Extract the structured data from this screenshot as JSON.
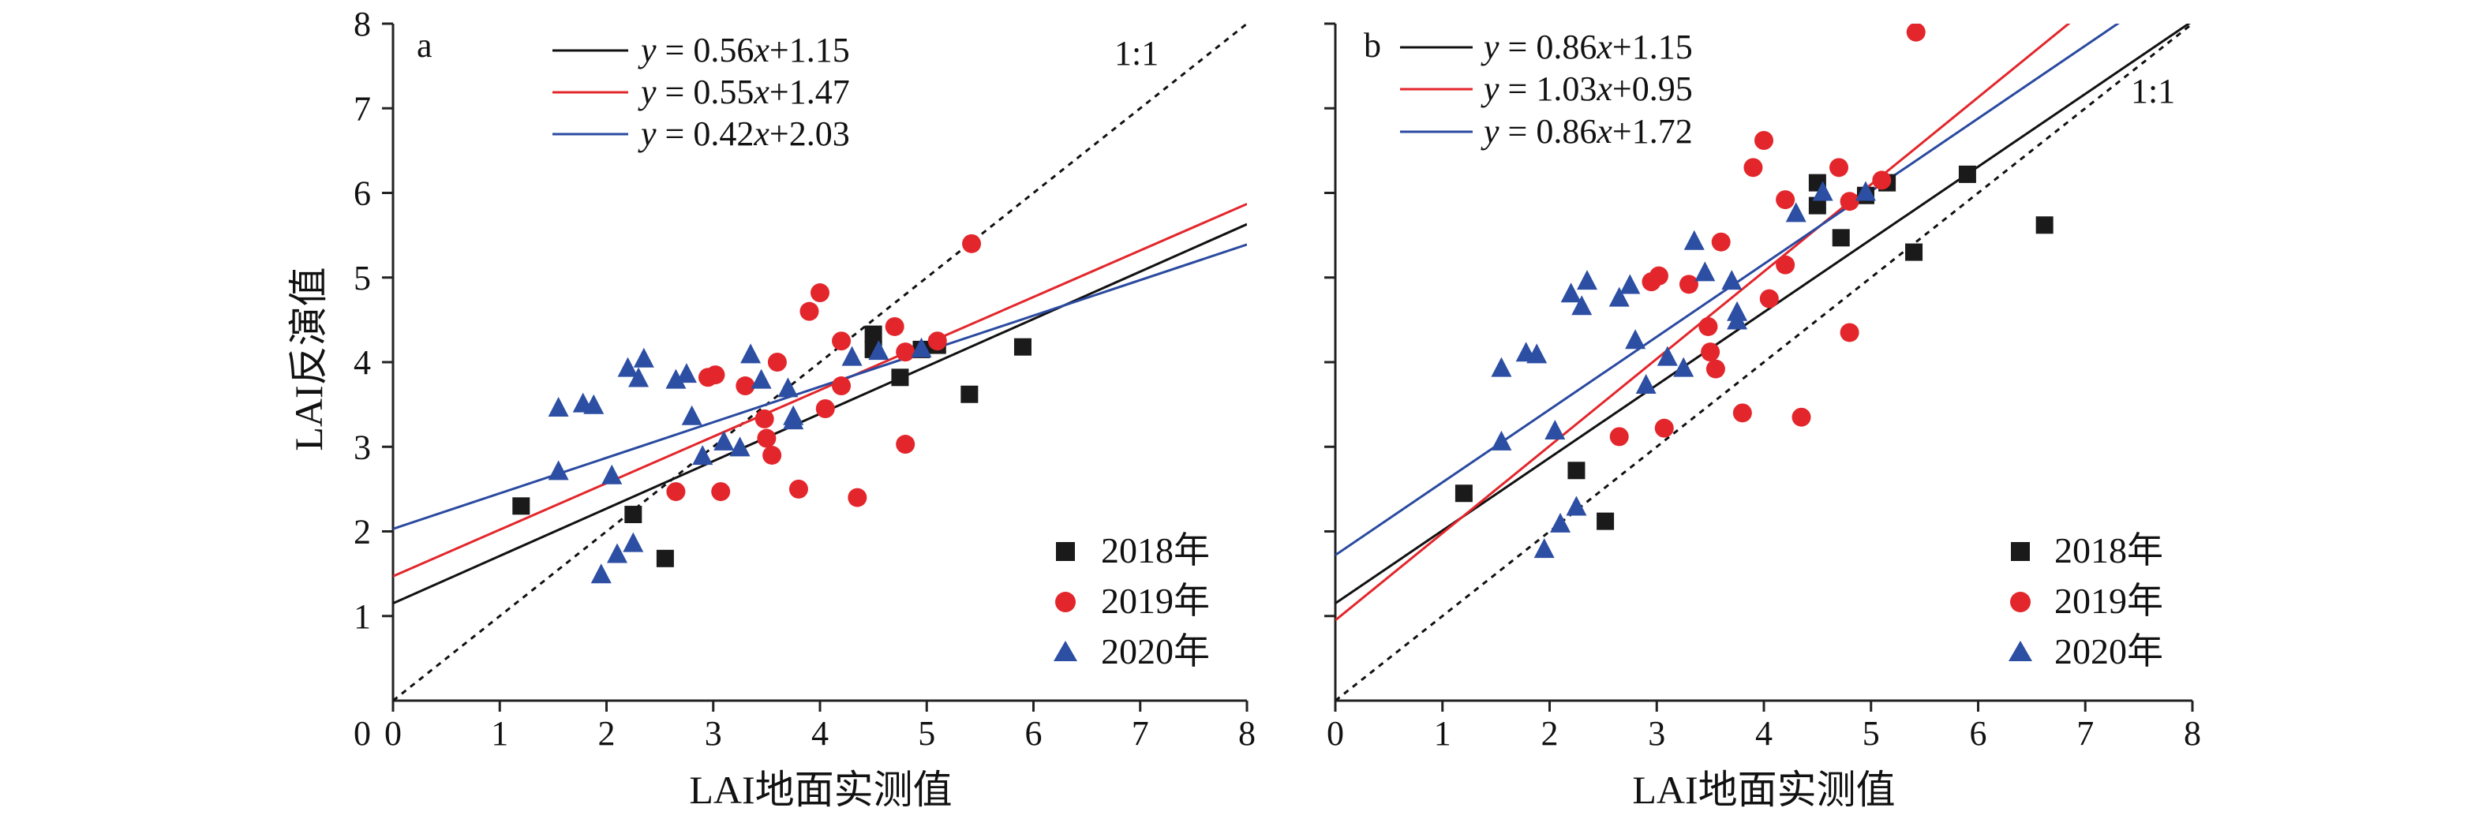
{
  "figure": {
    "y_axis_label": "LAI反演值",
    "years": [
      "2018年",
      "2019年",
      "2020年"
    ]
  },
  "colors": {
    "y2018": "#1a1a1a",
    "y2019": "#e3262b",
    "y2020": "#2c4ea3",
    "fit2018": "#111111",
    "fit2019": "#e3262b",
    "fit2020": "#2a4aa0",
    "one_to_one": "#111111"
  },
  "chart_data": [
    {
      "type": "scatter",
      "panel_label": "a",
      "xlabel": "LAI地面实测值",
      "ylabel": "LAI反演值",
      "xlim": [
        0,
        8
      ],
      "ylim": [
        0,
        8
      ],
      "xticks": [
        "0",
        "1",
        "2",
        "3",
        "4",
        "5",
        "6",
        "7",
        "8"
      ],
      "yticks": [
        "1",
        "2",
        "3",
        "4",
        "5",
        "6",
        "7",
        "8"
      ],
      "one_to_one_label": "1:1",
      "legend_position": "bottom-right",
      "series": [
        {
          "name": "2018年",
          "marker": "square",
          "color": "#1a1a1a",
          "equation": {
            "prefix": "y",
            "mid": " = 0.56",
            "var": "x",
            "suffix": "+1.15"
          },
          "fit": {
            "slope": 0.56,
            "intercept": 1.15
          },
          "points": [
            [
              1.2,
              2.3
            ],
            [
              2.25,
              2.2
            ],
            [
              2.55,
              1.68
            ],
            [
              4.5,
              4.33
            ],
            [
              4.5,
              4.15
            ],
            [
              4.75,
              3.82
            ],
            [
              4.95,
              4.15
            ],
            [
              5.1,
              4.2
            ],
            [
              5.4,
              3.62
            ],
            [
              5.9,
              4.18
            ]
          ]
        },
        {
          "name": "2019年",
          "marker": "circle",
          "color": "#e3262b",
          "equation": {
            "prefix": "y",
            "mid": " = 0.55",
            "var": "x",
            "suffix": "+1.47"
          },
          "fit": {
            "slope": 0.55,
            "intercept": 1.47
          },
          "points": [
            [
              2.65,
              2.47
            ],
            [
              2.95,
              3.82
            ],
            [
              3.02,
              3.85
            ],
            [
              3.07,
              2.47
            ],
            [
              3.3,
              3.72
            ],
            [
              3.48,
              3.33
            ],
            [
              3.5,
              3.1
            ],
            [
              3.55,
              2.9
            ],
            [
              3.6,
              4.0
            ],
            [
              3.8,
              2.5
            ],
            [
              3.9,
              4.6
            ],
            [
              4.0,
              4.82
            ],
            [
              4.05,
              3.45
            ],
            [
              4.2,
              4.25
            ],
            [
              4.2,
              3.72
            ],
            [
              4.35,
              2.4
            ],
            [
              4.7,
              4.42
            ],
            [
              4.8,
              4.12
            ],
            [
              4.8,
              3.03
            ],
            [
              5.1,
              4.25
            ],
            [
              5.42,
              5.4
            ]
          ]
        },
        {
          "name": "2020年",
          "marker": "triangle",
          "color": "#2c4ea3",
          "equation": {
            "prefix": "y",
            "mid": " = 0.42",
            "var": "x",
            "suffix": "+2.03"
          },
          "fit": {
            "slope": 0.42,
            "intercept": 2.03
          },
          "points": [
            [
              1.55,
              3.45
            ],
            [
              1.55,
              2.7
            ],
            [
              1.78,
              3.5
            ],
            [
              1.88,
              3.48
            ],
            [
              1.95,
              1.48
            ],
            [
              2.05,
              2.65
            ],
            [
              2.1,
              1.72
            ],
            [
              2.2,
              3.92
            ],
            [
              2.25,
              1.85
            ],
            [
              2.3,
              3.8
            ],
            [
              2.35,
              4.03
            ],
            [
              2.65,
              3.78
            ],
            [
              2.75,
              3.85
            ],
            [
              2.8,
              3.35
            ],
            [
              2.9,
              2.88
            ],
            [
              3.1,
              3.05
            ],
            [
              3.25,
              2.98
            ],
            [
              3.35,
              4.08
            ],
            [
              3.45,
              3.78
            ],
            [
              3.7,
              3.68
            ],
            [
              3.75,
              3.3
            ],
            [
              3.75,
              3.35
            ],
            [
              4.3,
              4.05
            ],
            [
              4.55,
              4.12
            ],
            [
              4.95,
              4.15
            ]
          ]
        }
      ]
    },
    {
      "type": "scatter",
      "panel_label": "b",
      "xlabel": "LAI地面实测值",
      "ylabel": "",
      "xlim": [
        0,
        8
      ],
      "ylim": [
        0,
        8
      ],
      "xticks": [
        "0",
        "1",
        "2",
        "3",
        "4",
        "5",
        "6",
        "7",
        "8"
      ],
      "yticks": [],
      "one_to_one_label": "1:1",
      "legend_position": "bottom-right",
      "series": [
        {
          "name": "2018年",
          "marker": "square",
          "color": "#1a1a1a",
          "equation": {
            "prefix": "y",
            "mid": " = 0.86",
            "var": "x",
            "suffix": "+1.15"
          },
          "fit": {
            "slope": 0.86,
            "intercept": 1.15
          },
          "points": [
            [
              1.2,
              2.45
            ],
            [
              2.25,
              2.72
            ],
            [
              2.52,
              2.12
            ],
            [
              4.5,
              6.12
            ],
            [
              4.5,
              5.85
            ],
            [
              4.72,
              5.47
            ],
            [
              4.95,
              5.97
            ],
            [
              5.15,
              6.12
            ],
            [
              5.4,
              5.3
            ],
            [
              5.9,
              6.22
            ],
            [
              6.62,
              5.62
            ]
          ]
        },
        {
          "name": "2019年",
          "marker": "circle",
          "color": "#e3262b",
          "equation": {
            "prefix": "y",
            "mid": " = 1.03",
            "var": "x",
            "suffix": "+0.95"
          },
          "fit": {
            "slope": 1.03,
            "intercept": 0.95
          },
          "points": [
            [
              2.65,
              3.12
            ],
            [
              2.95,
              4.95
            ],
            [
              3.02,
              5.02
            ],
            [
              3.07,
              3.22
            ],
            [
              3.3,
              4.92
            ],
            [
              3.48,
              4.42
            ],
            [
              3.5,
              4.12
            ],
            [
              3.55,
              3.92
            ],
            [
              3.6,
              5.42
            ],
            [
              3.8,
              3.4
            ],
            [
              3.9,
              6.3
            ],
            [
              4.0,
              6.62
            ],
            [
              4.05,
              4.75
            ],
            [
              4.2,
              5.92
            ],
            [
              4.2,
              5.15
            ],
            [
              4.35,
              3.35
            ],
            [
              4.7,
              6.3
            ],
            [
              4.8,
              5.9
            ],
            [
              4.8,
              4.35
            ],
            [
              5.1,
              6.15
            ],
            [
              5.42,
              7.9
            ]
          ]
        },
        {
          "name": "2020年",
          "marker": "triangle",
          "color": "#2c4ea3",
          "equation": {
            "prefix": "y",
            "mid": " = 0.86",
            "var": "x",
            "suffix": "+1.72"
          },
          "fit": {
            "slope": 0.86,
            "intercept": 1.72
          },
          "points": [
            [
              1.55,
              3.92
            ],
            [
              1.55,
              3.05
            ],
            [
              1.78,
              4.1
            ],
            [
              1.88,
              4.08
            ],
            [
              1.95,
              1.78
            ],
            [
              2.05,
              3.18
            ],
            [
              2.1,
              2.08
            ],
            [
              2.2,
              4.8
            ],
            [
              2.25,
              2.28
            ],
            [
              2.3,
              4.65
            ],
            [
              2.35,
              4.95
            ],
            [
              2.65,
              4.75
            ],
            [
              2.75,
              4.9
            ],
            [
              2.8,
              4.25
            ],
            [
              2.9,
              3.72
            ],
            [
              3.1,
              4.05
            ],
            [
              3.25,
              3.92
            ],
            [
              3.35,
              5.42
            ],
            [
              3.45,
              5.05
            ],
            [
              3.7,
              4.95
            ],
            [
              3.75,
              4.58
            ],
            [
              3.75,
              4.48
            ],
            [
              4.3,
              5.75
            ],
            [
              4.55,
              6.0
            ],
            [
              4.95,
              6.0
            ]
          ]
        }
      ]
    }
  ]
}
